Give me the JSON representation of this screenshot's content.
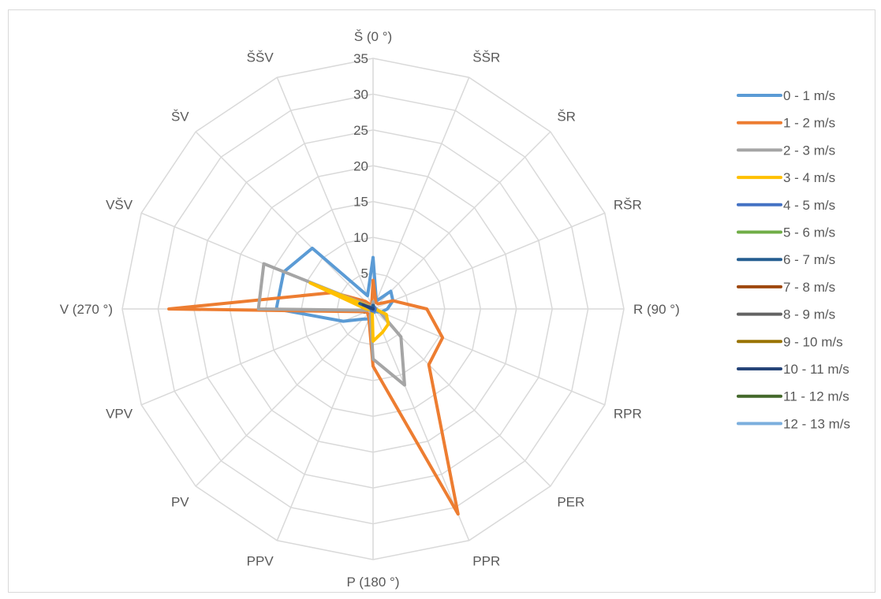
{
  "chart_data": {
    "type": "radar",
    "title": "",
    "categories": [
      "Š (0 °)",
      "ŠŠR",
      "ŠR",
      "RŠR",
      "R (90 °)",
      "RPR",
      "PER",
      "PPR",
      "P (180 °)",
      "PPV",
      "PV",
      "VPV",
      "V (270 °)",
      "VŠV",
      "ŠV",
      "ŠŠV"
    ],
    "rlim": [
      0,
      35
    ],
    "ticks": [
      0,
      5,
      10,
      15,
      20,
      25,
      30,
      35
    ],
    "grid": true,
    "legend_position": "right",
    "series": [
      {
        "name": "0 - 1 m/s",
        "color": "#5b9bd5",
        "values": [
          7.2,
          1.2,
          3.5,
          3.0,
          2.0,
          1.2,
          0.5,
          0.5,
          0.5,
          1.5,
          2.0,
          4.5,
          13.5,
          13.5,
          12.0,
          2.0
        ]
      },
      {
        "name": "1 - 2 m/s",
        "color": "#ed7d31",
        "values": [
          4.0,
          1.0,
          1.0,
          3.0,
          7.5,
          10.5,
          11.0,
          31.0,
          8.0,
          1.5,
          1.0,
          1.0,
          28.5,
          6.0,
          1.5,
          0.5
        ]
      },
      {
        "name": "2 - 3 m/s",
        "color": "#a5a5a5",
        "values": [
          1.0,
          0.3,
          0.3,
          0.3,
          0.5,
          1.0,
          5.5,
          11.5,
          7.0,
          1.0,
          0.3,
          0.5,
          16.0,
          16.5,
          0.5,
          0.3
        ]
      },
      {
        "name": "3 - 4 m/s",
        "color": "#ffc000",
        "values": [
          0.3,
          0.3,
          0.3,
          0.3,
          0.3,
          2.0,
          3.0,
          3.5,
          4.5,
          0.3,
          0.3,
          0.3,
          1.0,
          9.5,
          0.3,
          0.3
        ]
      },
      {
        "name": "4 - 5 m/s",
        "color": "#4472c4",
        "values": [
          0.5,
          0.3,
          0.3,
          0.3,
          0.3,
          0.3,
          0.3,
          0.3,
          0.3,
          0.3,
          0.3,
          0.3,
          0.3,
          1.0,
          0.3,
          0.3
        ]
      },
      {
        "name": "5 - 6 m/s",
        "color": "#70ad47",
        "values": [
          0,
          0,
          0,
          0,
          0,
          0,
          0,
          0,
          0,
          0,
          0,
          0,
          0,
          0,
          0,
          0
        ]
      },
      {
        "name": "6 - 7 m/s",
        "color": "#255e91",
        "values": [
          0.5,
          0,
          0,
          0,
          0,
          0,
          0,
          0,
          0,
          0,
          0,
          0,
          0,
          2.0,
          0,
          0
        ]
      },
      {
        "name": "7 - 8 m/s",
        "color": "#9e480e",
        "values": [
          0,
          0,
          0,
          0,
          0,
          0,
          0,
          0,
          0,
          0,
          0,
          0,
          0,
          0,
          0,
          0
        ]
      },
      {
        "name": "8 - 9 m/s",
        "color": "#636363",
        "values": [
          0,
          0,
          0,
          0,
          0,
          0,
          0,
          0,
          0,
          0,
          0,
          0,
          0,
          0,
          0,
          0
        ]
      },
      {
        "name": "9 - 10 m/s",
        "color": "#997300",
        "values": [
          0,
          0,
          0,
          0,
          0,
          0,
          0,
          0,
          0,
          0,
          0,
          0,
          0,
          0,
          0,
          0
        ]
      },
      {
        "name": "10 - 11 m/s",
        "color": "#264478",
        "values": [
          0,
          0,
          0,
          0,
          0,
          0,
          0,
          0,
          0,
          0,
          0,
          0,
          0,
          1.5,
          0,
          0
        ]
      },
      {
        "name": "11 - 12 m/s",
        "color": "#43682b",
        "values": [
          0,
          0,
          0,
          0,
          0,
          0,
          0,
          0,
          0,
          0,
          0,
          0,
          0,
          0,
          0,
          0
        ]
      },
      {
        "name": "12 - 13 m/s",
        "color": "#7cafdd",
        "values": [
          0,
          0,
          0,
          0,
          0,
          0,
          0,
          0,
          0,
          0,
          0,
          0,
          0,
          0,
          0,
          0
        ]
      }
    ]
  }
}
